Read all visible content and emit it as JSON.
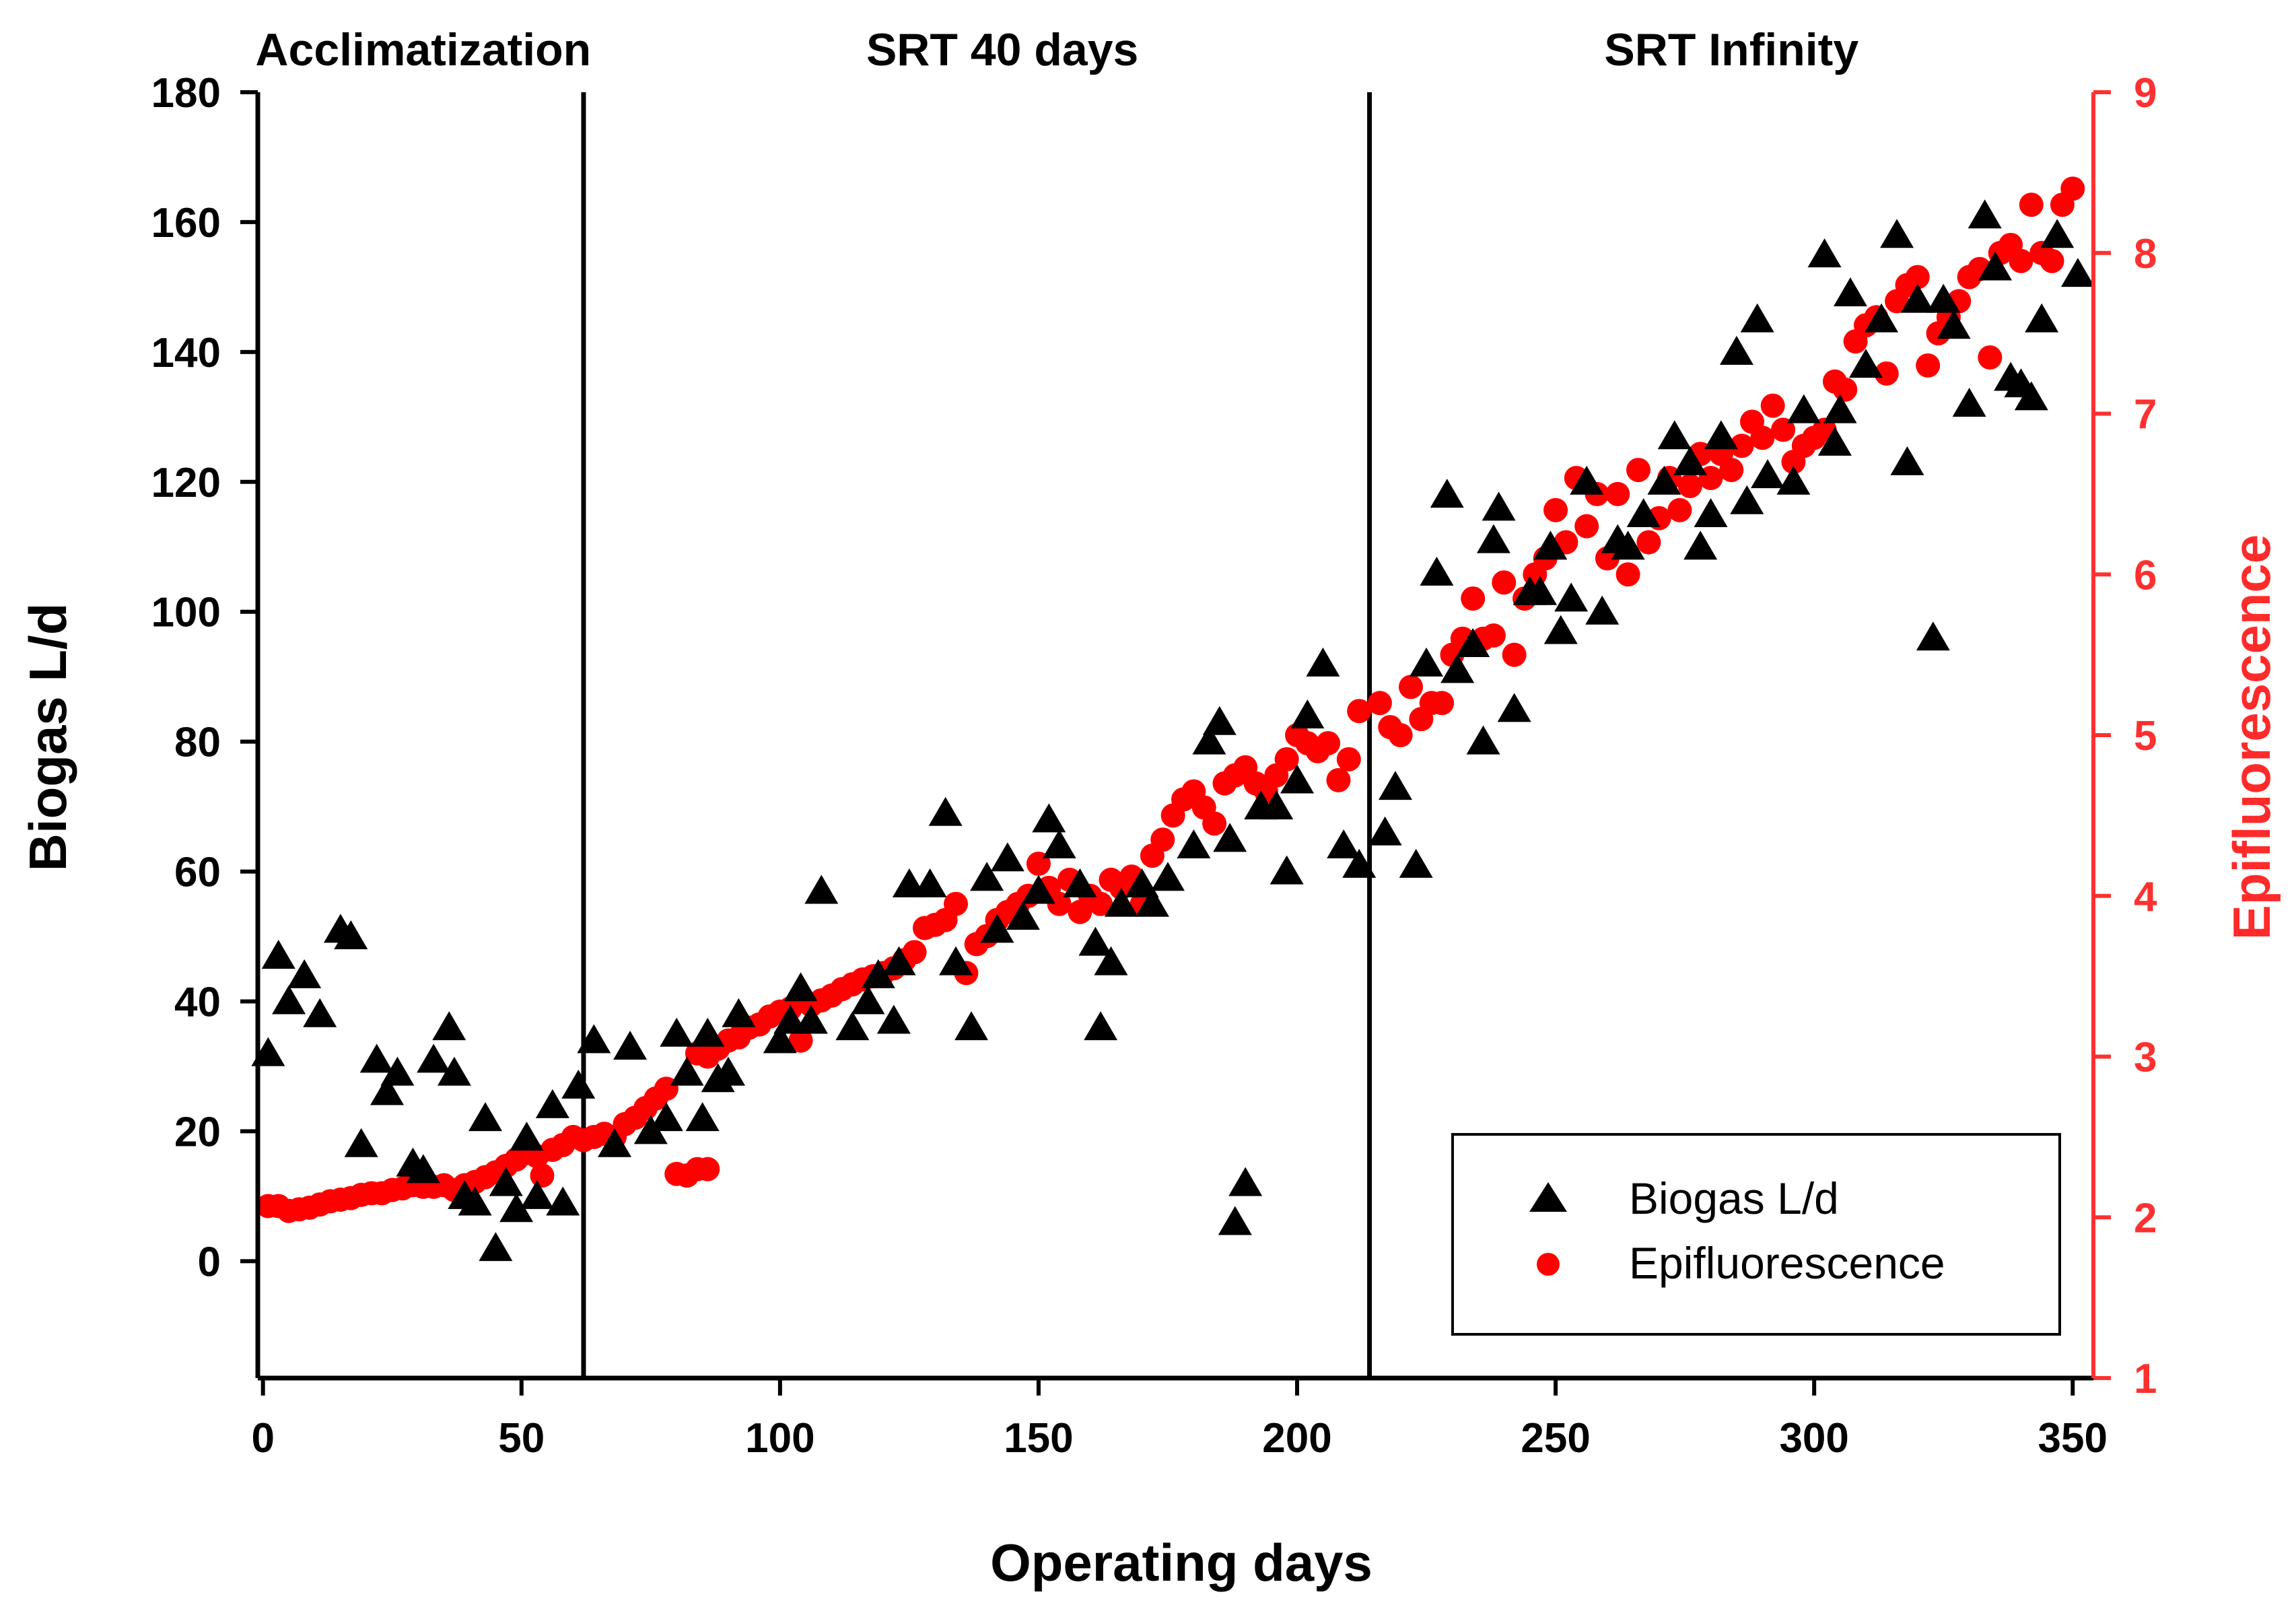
{
  "chart_data": {
    "type": "scatter",
    "title": "",
    "xlabel": "Operating days",
    "ylabel": "Biogas L/d",
    "y2label": "Epifluorescence",
    "xlim": [
      -1,
      354
    ],
    "ylim": [
      -18,
      180
    ],
    "y2lim": [
      1,
      9
    ],
    "xticks": [
      0,
      50,
      100,
      150,
      200,
      250,
      300,
      350
    ],
    "yticks": [
      0,
      20,
      40,
      60,
      80,
      100,
      120,
      140,
      160,
      180
    ],
    "y2ticks": [
      1,
      2,
      3,
      4,
      5,
      6,
      7,
      8,
      9
    ],
    "grid": false,
    "legend_position": "bottom-right",
    "colors": {
      "biogas": "#000000",
      "epifluorescence": "#ff0000",
      "right_axis": "#ff3030"
    },
    "phase_dividers": [
      62,
      214
    ],
    "phases": [
      {
        "label": "Acclimatization",
        "x_center": 31
      },
      {
        "label": "SRT 40 days",
        "x_center": 143
      },
      {
        "label": "SRT Infinity",
        "x_center": 284
      }
    ],
    "series": [
      {
        "name": "Biogas L/d",
        "axis": "left",
        "marker": "triangle",
        "points": [
          [
            1,
            32
          ],
          [
            3,
            47
          ],
          [
            5,
            40
          ],
          [
            8,
            44
          ],
          [
            11,
            38
          ],
          [
            15,
            51
          ],
          [
            17,
            50
          ],
          [
            19,
            18
          ],
          [
            22,
            31
          ],
          [
            24,
            26
          ],
          [
            26,
            29
          ],
          [
            29,
            15
          ],
          [
            31,
            14
          ],
          [
            33,
            31
          ],
          [
            36,
            36
          ],
          [
            37,
            29
          ],
          [
            39,
            10
          ],
          [
            41,
            9
          ],
          [
            43,
            22
          ],
          [
            45,
            2
          ],
          [
            47,
            12
          ],
          [
            49,
            8
          ],
          [
            51,
            19
          ],
          [
            53,
            10
          ],
          [
            56,
            24
          ],
          [
            58,
            9
          ],
          [
            61,
            27
          ],
          [
            64,
            34
          ],
          [
            68,
            18
          ],
          [
            71,
            33
          ],
          [
            75,
            20
          ],
          [
            78,
            22
          ],
          [
            80,
            35
          ],
          [
            82,
            29
          ],
          [
            85,
            22
          ],
          [
            86,
            35
          ],
          [
            88,
            28
          ],
          [
            90,
            29
          ],
          [
            92,
            38
          ],
          [
            100,
            34
          ],
          [
            102,
            37
          ],
          [
            104,
            42
          ],
          [
            106,
            37
          ],
          [
            108,
            57
          ],
          [
            114,
            36
          ],
          [
            117,
            40
          ],
          [
            119,
            44
          ],
          [
            122,
            37
          ],
          [
            123,
            46
          ],
          [
            125,
            58
          ],
          [
            129,
            58
          ],
          [
            132,
            69
          ],
          [
            134,
            46
          ],
          [
            137,
            36
          ],
          [
            140,
            59
          ],
          [
            142,
            51
          ],
          [
            144,
            62
          ],
          [
            147,
            53
          ],
          [
            150,
            57
          ],
          [
            152,
            68
          ],
          [
            154,
            64
          ],
          [
            158,
            58
          ],
          [
            161,
            49
          ],
          [
            162,
            36
          ],
          [
            164,
            46
          ],
          [
            166,
            55
          ],
          [
            170,
            58
          ],
          [
            172,
            55
          ],
          [
            175,
            59
          ],
          [
            180,
            64
          ],
          [
            183,
            80
          ],
          [
            185,
            83
          ],
          [
            187,
            65
          ],
          [
            188,
            6
          ],
          [
            190,
            12
          ],
          [
            193,
            70
          ],
          [
            196,
            70
          ],
          [
            198,
            60
          ],
          [
            200,
            74
          ],
          [
            202,
            84
          ],
          [
            205,
            92
          ],
          [
            209,
            64
          ],
          [
            212,
            61
          ],
          [
            217,
            66
          ],
          [
            219,
            73
          ],
          [
            223,
            61
          ],
          [
            225,
            92
          ],
          [
            227,
            106
          ],
          [
            229,
            118
          ],
          [
            231,
            91
          ],
          [
            234,
            95
          ],
          [
            236,
            80
          ],
          [
            238,
            111
          ],
          [
            239,
            116
          ],
          [
            242,
            85
          ],
          [
            245,
            103
          ],
          [
            247,
            103
          ],
          [
            249,
            110
          ],
          [
            251,
            97
          ],
          [
            253,
            102
          ],
          [
            256,
            120
          ],
          [
            259,
            100
          ],
          [
            262,
            111
          ],
          [
            264,
            110
          ],
          [
            267,
            115
          ],
          [
            271,
            120
          ],
          [
            273,
            127
          ],
          [
            276,
            123
          ],
          [
            278,
            110
          ],
          [
            280,
            115
          ],
          [
            282,
            127
          ],
          [
            285,
            140
          ],
          [
            287,
            117
          ],
          [
            289,
            145
          ],
          [
            291,
            121
          ],
          [
            296,
            120
          ],
          [
            298,
            131
          ],
          [
            302,
            155
          ],
          [
            304,
            126
          ],
          [
            305,
            131
          ],
          [
            307,
            149
          ],
          [
            310,
            138
          ],
          [
            313,
            145
          ],
          [
            316,
            158
          ],
          [
            318,
            123
          ],
          [
            320,
            148
          ],
          [
            323,
            96
          ],
          [
            325,
            148
          ],
          [
            327,
            144
          ],
          [
            330,
            132
          ],
          [
            333,
            161
          ],
          [
            335,
            153
          ],
          [
            338,
            136
          ],
          [
            340,
            135
          ],
          [
            342,
            133
          ],
          [
            344,
            145
          ],
          [
            347,
            158
          ],
          [
            351,
            152
          ]
        ]
      },
      {
        "name": "Epifluorescence",
        "axis": "right",
        "marker": "circle",
        "points": [
          [
            1,
            2.07
          ],
          [
            3,
            2.07
          ],
          [
            5,
            2.04
          ],
          [
            7,
            2.05
          ],
          [
            9,
            2.06
          ],
          [
            11,
            2.08
          ],
          [
            13,
            2.1
          ],
          [
            15,
            2.11
          ],
          [
            17,
            2.12
          ],
          [
            19,
            2.14
          ],
          [
            21,
            2.15
          ],
          [
            23,
            2.15
          ],
          [
            25,
            2.17
          ],
          [
            27,
            2.18
          ],
          [
            29,
            2.2
          ],
          [
            31,
            2.19
          ],
          [
            33,
            2.19
          ],
          [
            35,
            2.2
          ],
          [
            37,
            2.17
          ],
          [
            39,
            2.2
          ],
          [
            41,
            2.22
          ],
          [
            43,
            2.25
          ],
          [
            45,
            2.28
          ],
          [
            47,
            2.32
          ],
          [
            49,
            2.36
          ],
          [
            51,
            2.4
          ],
          [
            53,
            2.38
          ],
          [
            54,
            2.26
          ],
          [
            56,
            2.42
          ],
          [
            58,
            2.45
          ],
          [
            60,
            2.5
          ],
          [
            62,
            2.48
          ],
          [
            64,
            2.5
          ],
          [
            66,
            2.52
          ],
          [
            68,
            2.5
          ],
          [
            70,
            2.58
          ],
          [
            72,
            2.62
          ],
          [
            74,
            2.68
          ],
          [
            76,
            2.74
          ],
          [
            78,
            2.8
          ],
          [
            80,
            2.27
          ],
          [
            82,
            2.26
          ],
          [
            84,
            2.3
          ],
          [
            86,
            2.3
          ],
          [
            84,
            3.02
          ],
          [
            86,
            3.0
          ],
          [
            88,
            3.05
          ],
          [
            90,
            3.1
          ],
          [
            92,
            3.12
          ],
          [
            94,
            3.18
          ],
          [
            96,
            3.2
          ],
          [
            98,
            3.25
          ],
          [
            100,
            3.28
          ],
          [
            102,
            3.3
          ],
          [
            104,
            3.1
          ],
          [
            106,
            3.32
          ],
          [
            108,
            3.35
          ],
          [
            110,
            3.38
          ],
          [
            112,
            3.42
          ],
          [
            114,
            3.45
          ],
          [
            116,
            3.48
          ],
          [
            118,
            3.5
          ],
          [
            120,
            3.52
          ],
          [
            122,
            3.55
          ],
          [
            124,
            3.6
          ],
          [
            126,
            3.65
          ],
          [
            128,
            3.8
          ],
          [
            130,
            3.82
          ],
          [
            132,
            3.85
          ],
          [
            134,
            3.95
          ],
          [
            136,
            3.52
          ],
          [
            138,
            3.7
          ],
          [
            140,
            3.75
          ],
          [
            142,
            3.85
          ],
          [
            144,
            3.9
          ],
          [
            146,
            3.95
          ],
          [
            148,
            4.0
          ],
          [
            150,
            4.2
          ],
          [
            152,
            4.05
          ],
          [
            154,
            3.95
          ],
          [
            156,
            4.1
          ],
          [
            158,
            3.9
          ],
          [
            160,
            4.0
          ],
          [
            162,
            3.95
          ],
          [
            164,
            4.1
          ],
          [
            166,
            4.05
          ],
          [
            168,
            4.12
          ],
          [
            170,
            3.95
          ],
          [
            172,
            4.25
          ],
          [
            174,
            4.35
          ],
          [
            176,
            4.5
          ],
          [
            178,
            4.6
          ],
          [
            180,
            4.65
          ],
          [
            182,
            4.55
          ],
          [
            184,
            4.45
          ],
          [
            186,
            4.7
          ],
          [
            188,
            4.75
          ],
          [
            190,
            4.8
          ],
          [
            192,
            4.7
          ],
          [
            194,
            4.65
          ],
          [
            196,
            4.75
          ],
          [
            198,
            4.85
          ],
          [
            200,
            5.0
          ],
          [
            202,
            4.95
          ],
          [
            204,
            4.9
          ],
          [
            206,
            4.95
          ],
          [
            208,
            4.72
          ],
          [
            210,
            4.85
          ],
          [
            212,
            5.15
          ],
          [
            216,
            5.2
          ],
          [
            218,
            5.05
          ],
          [
            220,
            5.0
          ],
          [
            222,
            5.3
          ],
          [
            224,
            5.1
          ],
          [
            226,
            5.2
          ],
          [
            228,
            5.2
          ],
          [
            230,
            5.5
          ],
          [
            232,
            5.6
          ],
          [
            234,
            5.85
          ],
          [
            236,
            5.6
          ],
          [
            238,
            5.62
          ],
          [
            240,
            5.95
          ],
          [
            242,
            5.5
          ],
          [
            244,
            5.85
          ],
          [
            246,
            6.0
          ],
          [
            248,
            6.1
          ],
          [
            250,
            6.4
          ],
          [
            252,
            6.2
          ],
          [
            254,
            6.6
          ],
          [
            256,
            6.3
          ],
          [
            258,
            6.5
          ],
          [
            260,
            6.1
          ],
          [
            262,
            6.5
          ],
          [
            264,
            6.0
          ],
          [
            266,
            6.65
          ],
          [
            268,
            6.2
          ],
          [
            270,
            6.35
          ],
          [
            272,
            6.6
          ],
          [
            274,
            6.4
          ],
          [
            276,
            6.55
          ],
          [
            278,
            6.75
          ],
          [
            280,
            6.6
          ],
          [
            282,
            6.75
          ],
          [
            284,
            6.65
          ],
          [
            286,
            6.8
          ],
          [
            288,
            6.95
          ],
          [
            290,
            6.85
          ],
          [
            292,
            7.05
          ],
          [
            294,
            6.9
          ],
          [
            296,
            6.7
          ],
          [
            298,
            6.8
          ],
          [
            300,
            6.85
          ],
          [
            302,
            6.9
          ],
          [
            304,
            7.2
          ],
          [
            306,
            7.15
          ],
          [
            308,
            7.45
          ],
          [
            310,
            7.55
          ],
          [
            312,
            7.6
          ],
          [
            314,
            7.25
          ],
          [
            316,
            7.7
          ],
          [
            318,
            7.8
          ],
          [
            320,
            7.85
          ],
          [
            322,
            7.3
          ],
          [
            324,
            7.5
          ],
          [
            326,
            7.6
          ],
          [
            328,
            7.7
          ],
          [
            330,
            7.85
          ],
          [
            332,
            7.9
          ],
          [
            334,
            7.35
          ],
          [
            336,
            8.0
          ],
          [
            338,
            8.05
          ],
          [
            340,
            7.95
          ],
          [
            342,
            8.3
          ],
          [
            344,
            8.0
          ],
          [
            346,
            7.95
          ],
          [
            348,
            8.3
          ],
          [
            350,
            8.4
          ]
        ]
      }
    ]
  }
}
